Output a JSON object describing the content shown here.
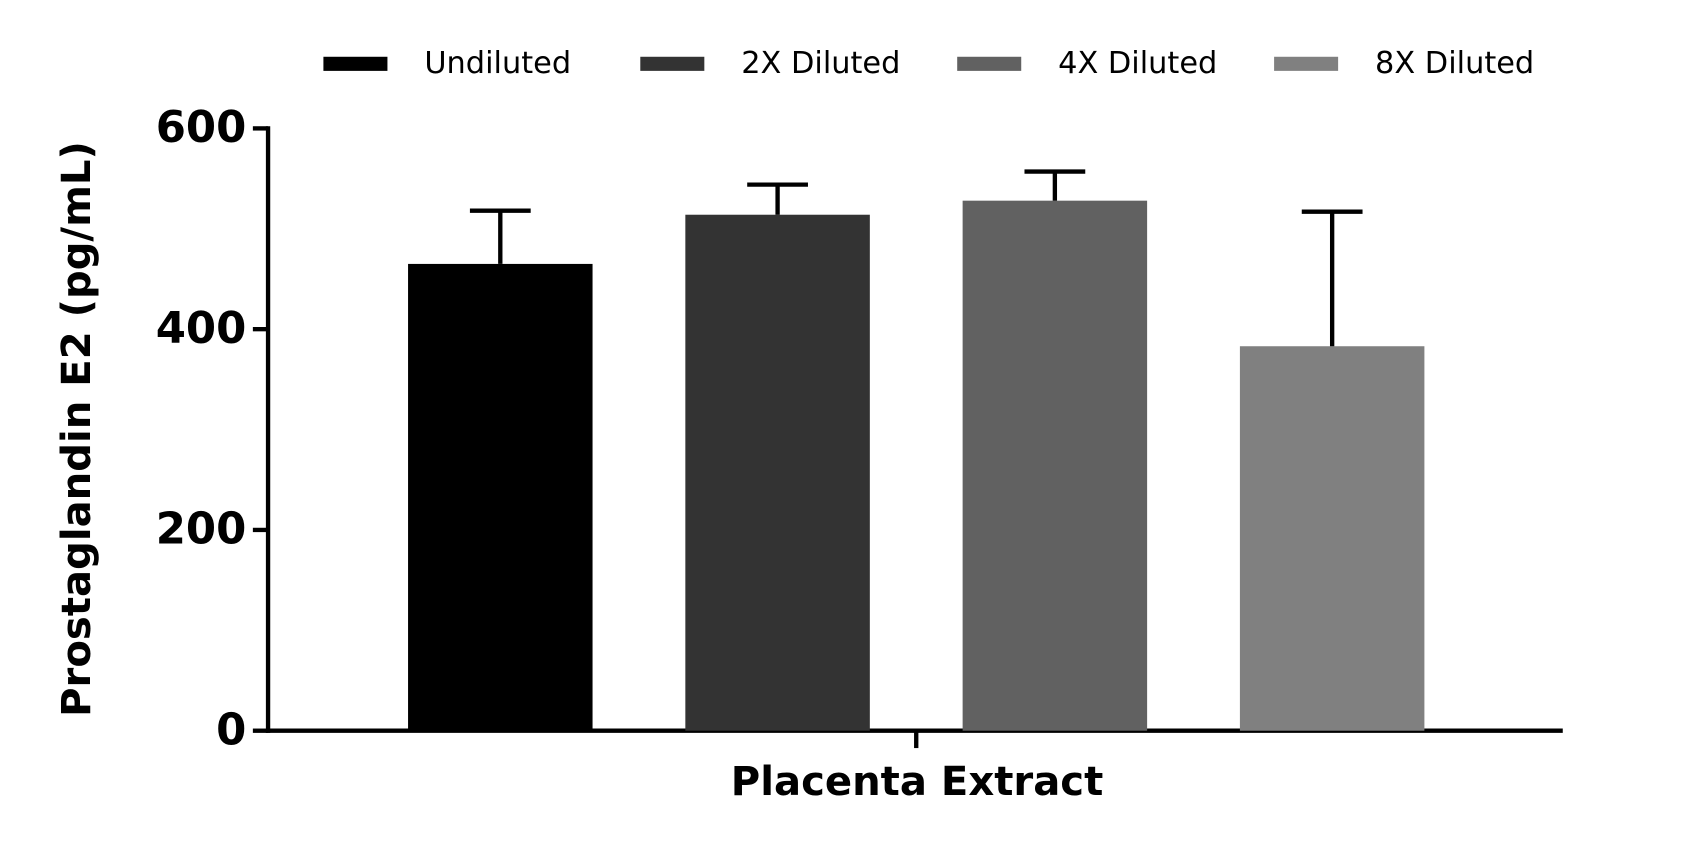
{
  "chart_data": {
    "type": "bar",
    "xlabel": "Placenta Extract",
    "ylabel": "Prostaglandin E2 (pg/mL)",
    "categories": [
      null
    ],
    "series": [
      {
        "name": "Undiluted",
        "color": "#000000",
        "values": [
          465
        ],
        "errors": [
          53
        ]
      },
      {
        "name": "2X Diluted",
        "color": "#333333",
        "values": [
          514
        ],
        "errors": [
          30
        ]
      },
      {
        "name": "4X Diluted",
        "color": "#616161",
        "values": [
          528
        ],
        "errors": [
          29
        ]
      },
      {
        "name": "8X Diluted",
        "color": "#808080",
        "values": [
          383
        ],
        "errors": [
          134
        ]
      }
    ],
    "ylim": [
      0,
      600
    ],
    "yticks": [
      0,
      200,
      400,
      600
    ],
    "legend": "top"
  }
}
